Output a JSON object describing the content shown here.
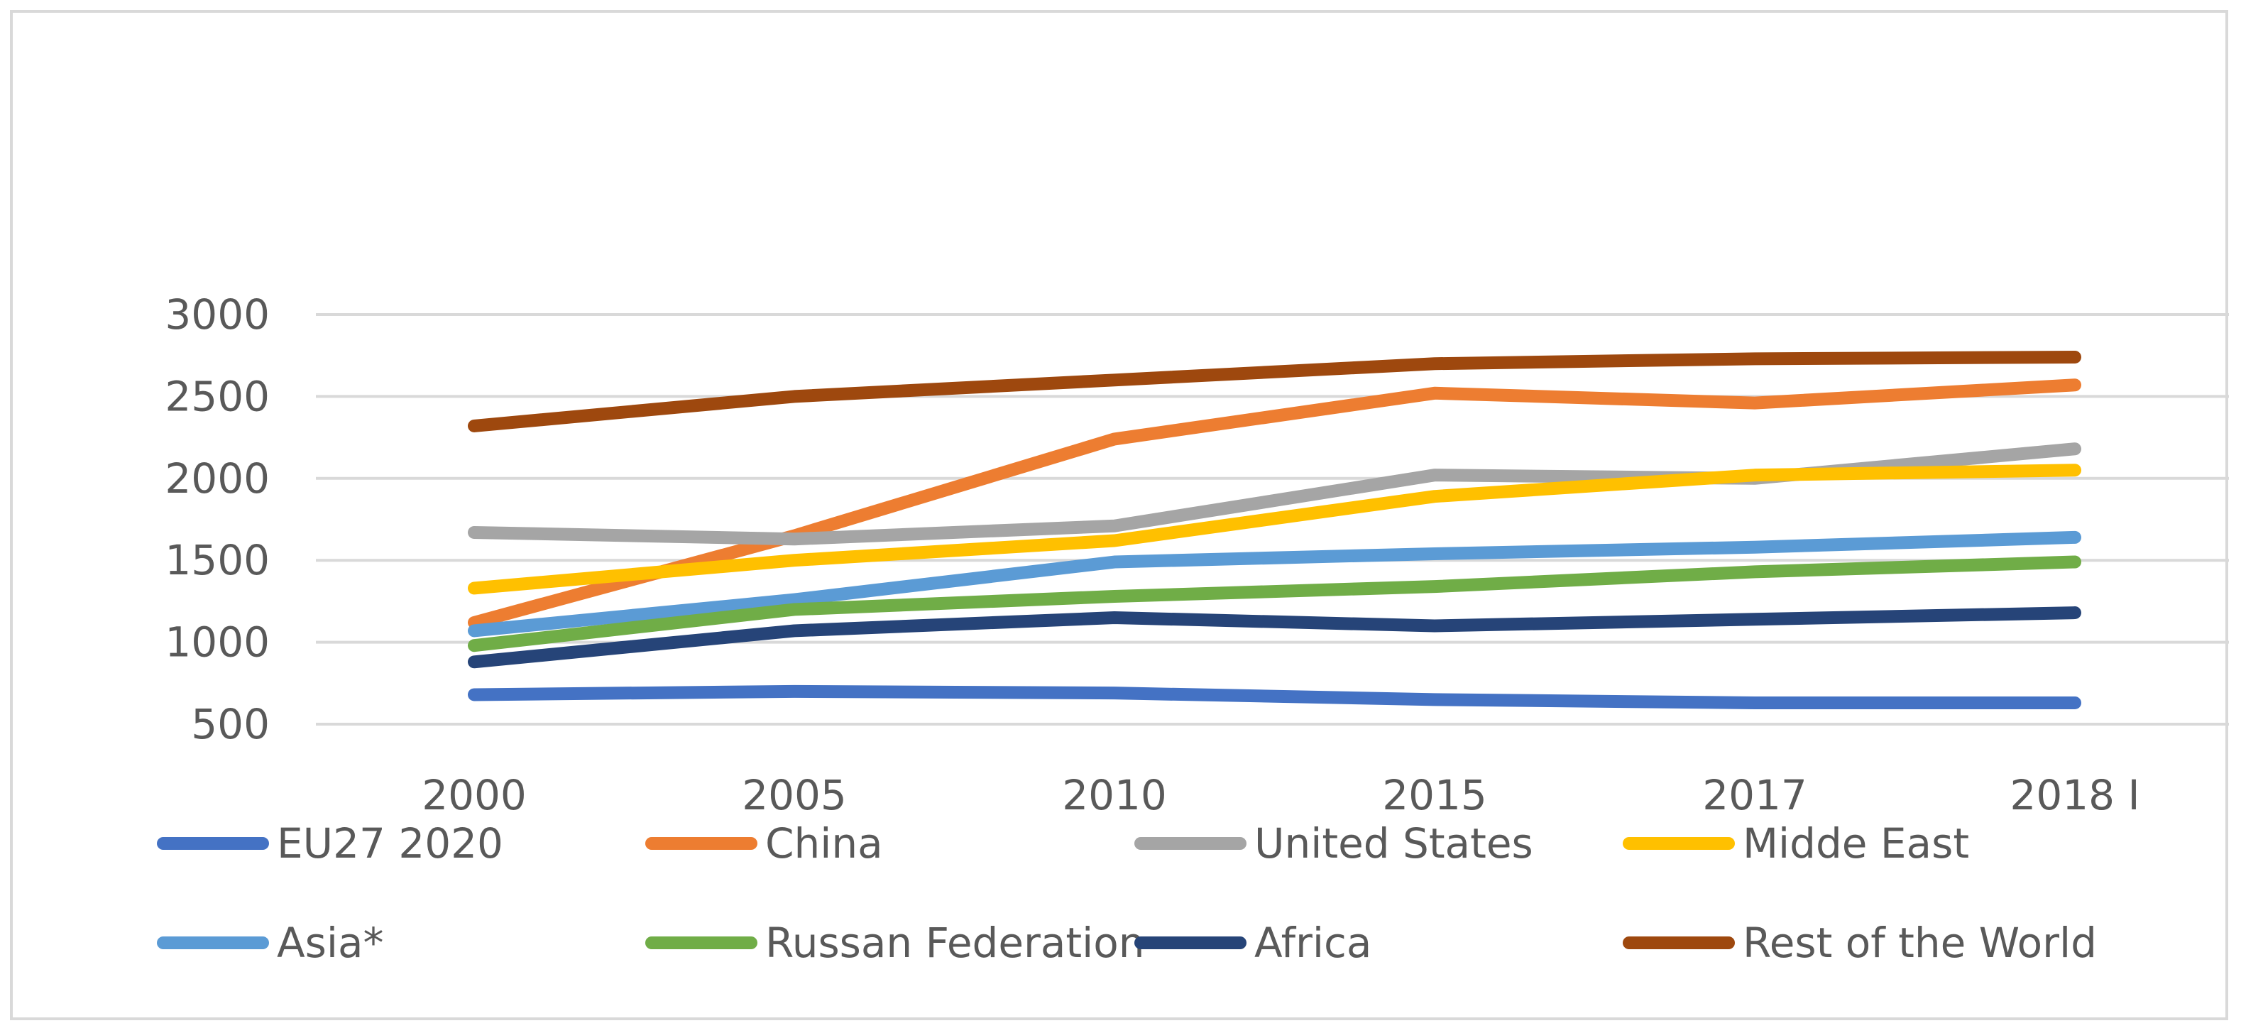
{
  "chart_data": {
    "type": "line",
    "title": "",
    "xlabel": "",
    "ylabel": "",
    "categories": [
      "2000",
      "2005",
      "2010",
      "2015",
      "2017",
      "2018 I"
    ],
    "ylim": [
      500,
      3000
    ],
    "yticks": [
      500,
      1000,
      1500,
      2000,
      2500,
      3000
    ],
    "grid": true,
    "legend_position": "bottom",
    "series": [
      {
        "name": "EU27 2020",
        "color": "#4472c4",
        "values": [
          680,
          700,
          690,
          650,
          630,
          630
        ]
      },
      {
        "name": "China",
        "color": "#ed7d31",
        "values": [
          1120,
          1650,
          2240,
          2520,
          2460,
          2570
        ]
      },
      {
        "name": "United States",
        "color": "#a5a5a5",
        "values": [
          1670,
          1630,
          1710,
          2020,
          2000,
          2180
        ]
      },
      {
        "name": "Midde East",
        "color": "#ffc000",
        "values": [
          1330,
          1500,
          1620,
          1890,
          2020,
          2050
        ]
      },
      {
        "name": "Asia*",
        "color": "#5b9bd5",
        "values": [
          1070,
          1260,
          1490,
          1540,
          1580,
          1640
        ]
      },
      {
        "name": "Russan Federation",
        "color": "#70ad47",
        "values": [
          980,
          1200,
          1280,
          1340,
          1430,
          1490
        ]
      },
      {
        "name": "Africa",
        "color": "#264478",
        "values": [
          880,
          1070,
          1150,
          1100,
          1140,
          1180
        ]
      },
      {
        "name": "Rest of the World",
        "color": "#9e480e",
        "values": [
          2320,
          2500,
          2600,
          2700,
          2730,
          2740
        ]
      }
    ]
  }
}
